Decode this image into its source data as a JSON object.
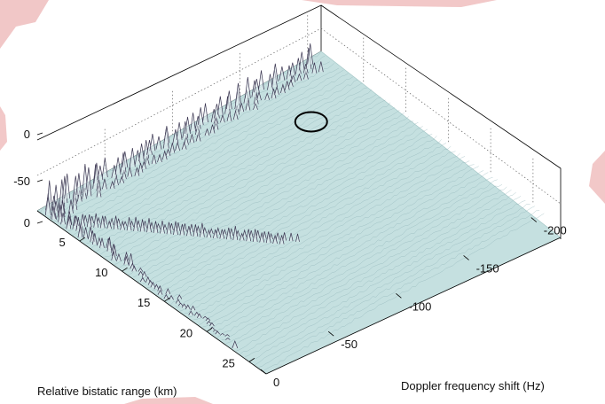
{
  "chart_data": {
    "type": "surface",
    "title": "",
    "xlabel": "Relative bistatic range (km)",
    "ylabel": "Doppler frequency shift (Hz)",
    "zlabel": "",
    "x_ticks": [
      "5",
      "10",
      "15",
      "20",
      "25"
    ],
    "y_ticks": [
      "0",
      "-50",
      "-100",
      "-150",
      "-200"
    ],
    "z_ticks": [
      "0",
      "-50",
      "0"
    ],
    "xlim": [
      0,
      27
    ],
    "ylim": [
      -210,
      5
    ],
    "zlim": [
      -80,
      10
    ],
    "noise_floor": -70,
    "features": [
      {
        "kind": "ridge",
        "range_km": 0,
        "doppler_hz": [
          0,
          -200
        ],
        "peak_level": -20
      },
      {
        "kind": "ridge",
        "range_km": [
          0,
          23
        ],
        "doppler_hz": 0,
        "peak_level": -30
      },
      {
        "kind": "diagonal_echo",
        "range_km": [
          3,
          16
        ],
        "doppler_hz": [
          0,
          -80
        ],
        "peak_level": -40
      },
      {
        "kind": "target_marker",
        "shape": "circle",
        "range_km": 6,
        "doppler_hz": -165
      }
    ],
    "grid": true,
    "colors": {
      "surface": "#c5e0e0",
      "peaks": "#3a3550",
      "box": "#000000"
    }
  }
}
